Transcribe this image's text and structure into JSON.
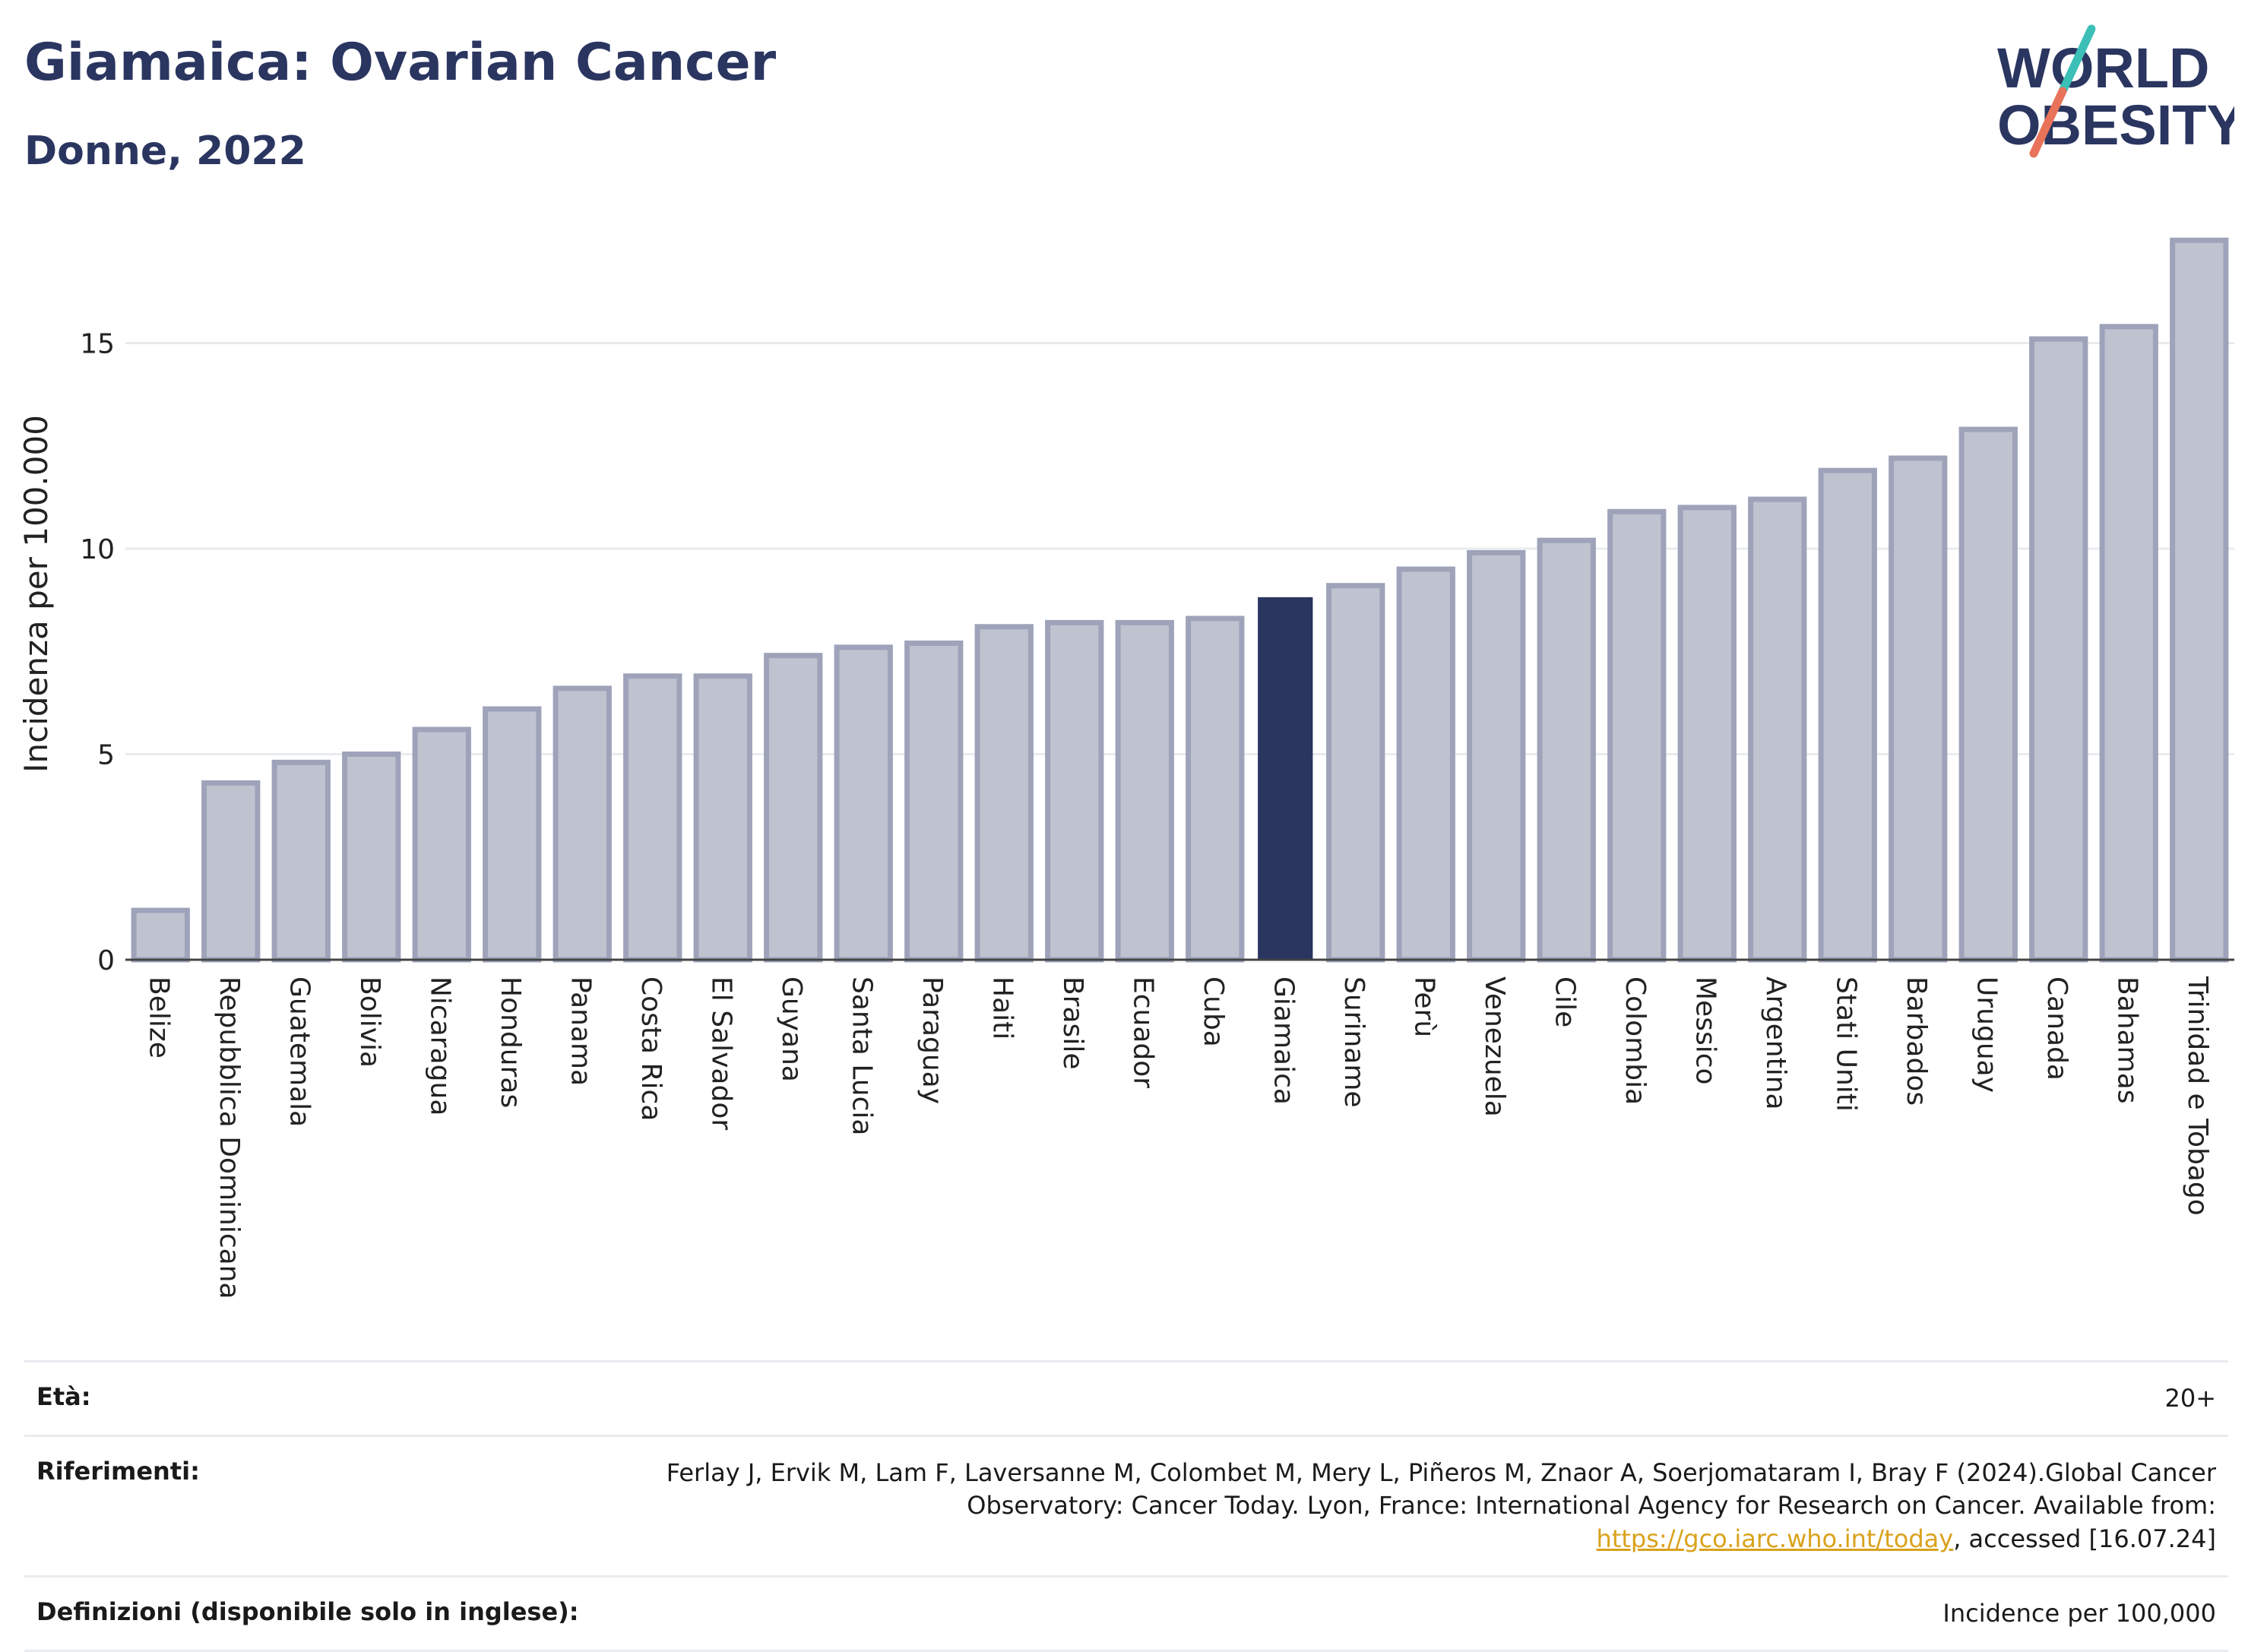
{
  "header": {
    "title": "Giamaica: Ovarian Cancer",
    "subtitle": "Donne, 2022"
  },
  "logo": {
    "line1": "WORLD",
    "line2": "OBESITY",
    "colors": {
      "text": "#2a3560",
      "slash_top": "#3bbfb7",
      "slash_bottom": "#e8735a"
    }
  },
  "chart_data": {
    "type": "bar",
    "title": "Giamaica: Ovarian Cancer",
    "subtitle": "Donne, 2022",
    "xlabel": "",
    "ylabel": "Incidenza per 100.000",
    "ylim": [
      0,
      17.8
    ],
    "yticks": [
      0,
      5,
      10,
      15
    ],
    "grid": true,
    "highlight": "Giamaica",
    "colors": {
      "bar": "#bfc3d0",
      "bar_border": "#9ea3ba",
      "highlight": "#2a3560"
    },
    "categories": [
      "Belize",
      "Repubblica Dominicana",
      "Guatemala",
      "Bolivia",
      "Nicaragua",
      "Honduras",
      "Panama",
      "Costa Rica",
      "El Salvador",
      "Guyana",
      "Santa Lucia",
      "Paraguay",
      "Haiti",
      "Brasile",
      "Ecuador",
      "Cuba",
      "Giamaica",
      "Suriname",
      "Perù",
      "Venezuela",
      "Cile",
      "Colombia",
      "Messico",
      "Argentina",
      "Stati Uniti",
      "Barbados",
      "Uruguay",
      "Canada",
      "Bahamas",
      "Trinidad e Tobago"
    ],
    "values": [
      1.2,
      4.3,
      4.8,
      5.0,
      5.6,
      6.1,
      6.6,
      6.9,
      6.9,
      7.4,
      7.6,
      7.7,
      8.1,
      8.2,
      8.2,
      8.3,
      8.8,
      9.1,
      9.5,
      9.9,
      10.2,
      10.9,
      11.0,
      11.2,
      11.9,
      12.2,
      12.9,
      15.1,
      15.4,
      17.5
    ]
  },
  "info": {
    "age_label": "Età:",
    "age_value": "20+",
    "ref_label": "Riferimenti:",
    "ref_text_1": "Ferlay J, Ervik M, Lam F, Laversanne M, Colombet M, Mery L, Piñeros M, Znaor A, Soerjomataram I, Bray F (2024).Global Cancer Observatory: Cancer Today. Lyon, France: International Agency for Research on Cancer. Available from: ",
    "ref_link": "https://gco.iarc.who.int/today",
    "ref_text_2": ", accessed [16.07.24]",
    "def_label": "Definizioni (disponibile solo in inglese):",
    "def_value": "Incidence per 100,000"
  }
}
